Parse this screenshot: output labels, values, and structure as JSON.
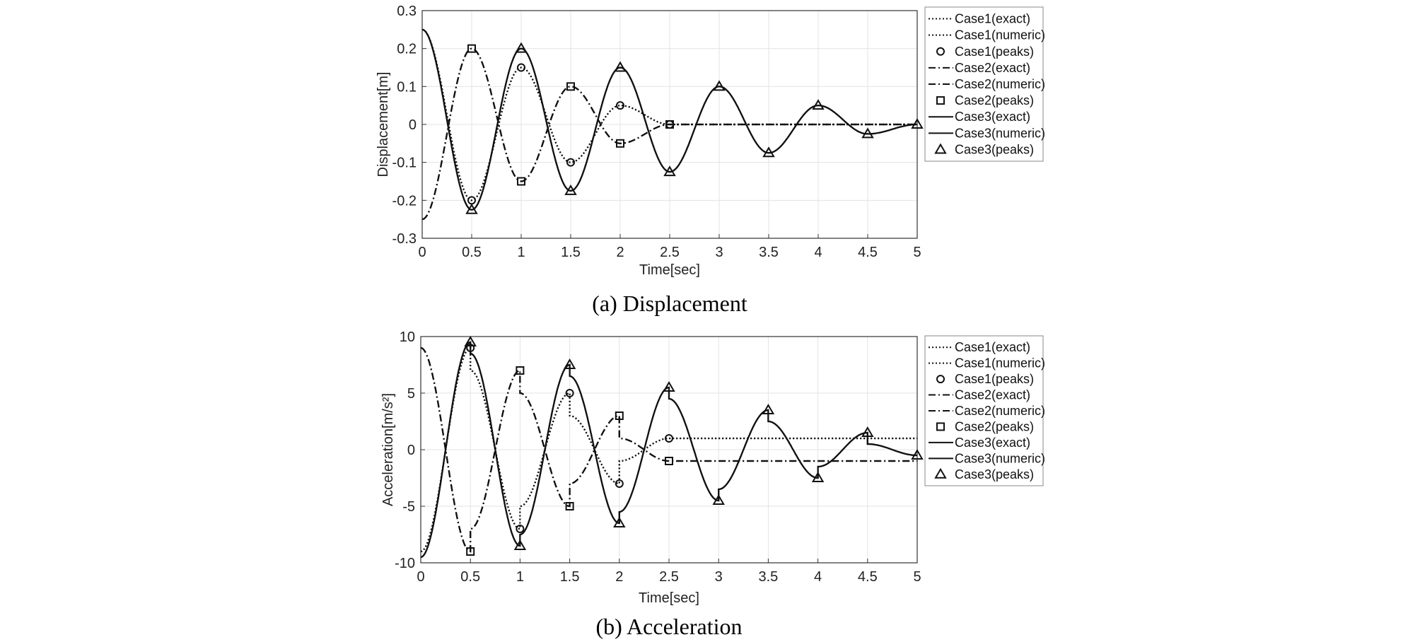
{
  "chart_data": [
    {
      "type": "line",
      "caption": "(a) Displacement",
      "xlabel": "Time[sec]",
      "ylabel": "Displacement[m]",
      "xlim": [
        0,
        5
      ],
      "ylim": [
        -0.3,
        0.3
      ],
      "xticks": [
        "0",
        "0.5",
        "1",
        "1.5",
        "2",
        "2.5",
        "3",
        "3.5",
        "4",
        "4.5",
        "5"
      ],
      "yticks": [
        "0.3",
        "0.2",
        "0.1",
        "0",
        "-0.1",
        "-0.2",
        "-0.3"
      ],
      "grid": true,
      "legend_position": "outside-right",
      "legend": [
        "Case1(exact)",
        "Case1(numeric)",
        "Case1(peaks)",
        "Case2(exact)",
        "Case2(numeric)",
        "Case2(peaks)",
        "Case3(exact)",
        "Case3(numeric)",
        "Case3(peaks)"
      ],
      "series": [
        {
          "name": "Case1",
          "style": "dotted",
          "marker": "circle",
          "x0": 0.25,
          "peak_t": [
            0.5,
            1,
            1.5,
            2,
            2.5
          ],
          "peak_values": [
            -0.2,
            0.15,
            -0.1,
            0.05,
            0
          ]
        },
        {
          "name": "Case2",
          "style": "dashdot",
          "marker": "square",
          "x0": -0.25,
          "peak_t": [
            0.5,
            1,
            1.5,
            2,
            2.5
          ],
          "peak_values": [
            0.2,
            -0.15,
            0.1,
            -0.05,
            0
          ]
        },
        {
          "name": "Case3",
          "style": "solid",
          "marker": "triangle",
          "x0": 0.25,
          "peak_t": [
            0.5,
            1,
            1.5,
            2,
            2.5,
            3,
            3.5,
            4,
            4.5,
            5
          ],
          "peak_values": [
            -0.225,
            0.2,
            -0.175,
            0.15,
            -0.125,
            0.1,
            -0.075,
            0.05,
            -0.025,
            0
          ]
        }
      ]
    },
    {
      "type": "line",
      "caption": "(b) Acceleration",
      "xlabel": "Time[sec]",
      "ylabel": "Acceleration[m/s²]",
      "xlim": [
        0,
        5
      ],
      "ylim": [
        -10,
        10
      ],
      "xticks": [
        "0",
        "0.5",
        "1",
        "1.5",
        "2",
        "2.5",
        "3",
        "3.5",
        "4",
        "4.5",
        "5"
      ],
      "yticks": [
        "10",
        "5",
        "0",
        "-5",
        "-10"
      ],
      "grid": true,
      "legend_position": "outside-right",
      "legend": [
        "Case1(exact)",
        "Case1(numeric)",
        "Case1(peaks)",
        "Case2(exact)",
        "Case2(numeric)",
        "Case2(peaks)",
        "Case3(exact)",
        "Case3(numeric)",
        "Case3(peaks)"
      ],
      "series": [
        {
          "name": "Case1",
          "style": "dotted",
          "marker": "circle",
          "a0": -9,
          "peak_t": [
            0.5,
            1,
            1.5,
            2,
            2.5
          ],
          "peak_values": [
            9,
            -7,
            5,
            -3,
            1
          ],
          "final_value": 1
        },
        {
          "name": "Case2",
          "style": "dashdot",
          "marker": "square",
          "a0": 9,
          "peak_t": [
            0.5,
            1,
            1.5,
            2,
            2.5
          ],
          "peak_values": [
            -9,
            7,
            -5,
            3,
            -1
          ],
          "final_value": -1
        },
        {
          "name": "Case3",
          "style": "solid",
          "marker": "triangle",
          "a0": -9.5,
          "peak_t": [
            0.5,
            1,
            1.5,
            2,
            2.5,
            3,
            3.5,
            4,
            4.5,
            5
          ],
          "peak_values": [
            9.5,
            -8.5,
            7.5,
            -6.5,
            5.5,
            -4.5,
            3.5,
            -2.5,
            1.5,
            -0.5
          ]
        }
      ]
    }
  ]
}
